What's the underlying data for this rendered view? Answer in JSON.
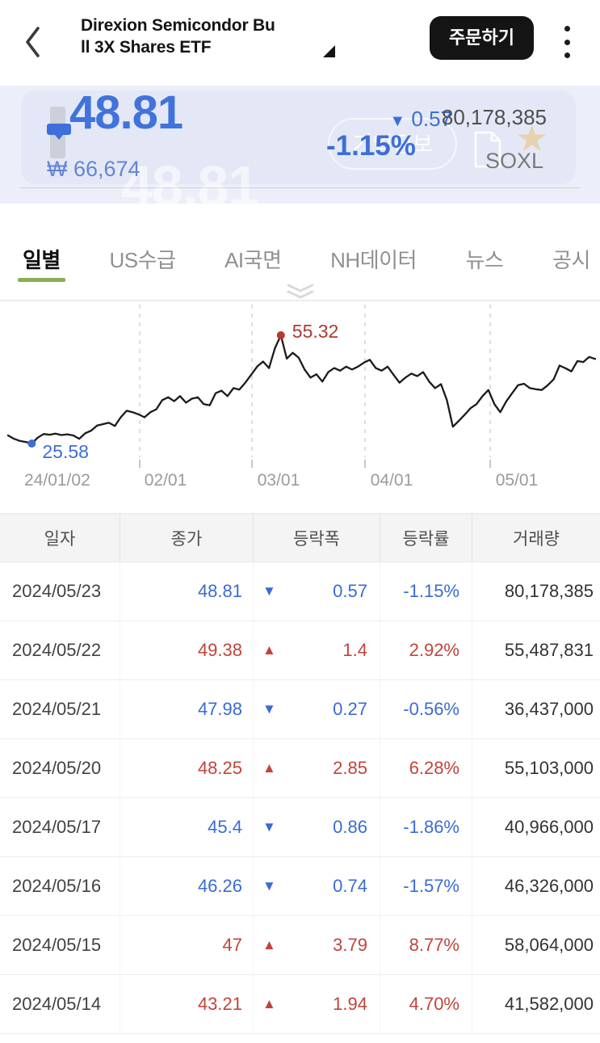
{
  "colors": {
    "up": "#C2443A",
    "down": "#3A6BD4",
    "accent_green": "#8CAE52",
    "price_blue": "#4273DC"
  },
  "header": {
    "title_line1": "Direxion Semicondor Bu",
    "title_line2": "ll 3X Shares ETF",
    "order_button": "주문하기"
  },
  "price": {
    "value": "48.81",
    "krw": "₩ 66,674",
    "change_direction": "▼",
    "change": "0.57",
    "change_pct": "-1.15%",
    "volume": "80,178,385",
    "ticker": "SOXL",
    "ghost_pill": "기업정보",
    "watermark": "48.81"
  },
  "tabs": [
    {
      "label": "일별",
      "active": true
    },
    {
      "label": "US수급",
      "active": false
    },
    {
      "label": "AI국면",
      "active": false
    },
    {
      "label": "NH데이터",
      "active": false
    },
    {
      "label": "뉴스",
      "active": false
    },
    {
      "label": "공시",
      "active": false
    }
  ],
  "chart_data": {
    "type": "line",
    "series_name": "SOXL daily close",
    "x_tick_labels": [
      "24/01/02",
      "02/01",
      "03/01",
      "04/01",
      "05/01"
    ],
    "ymin": 25.58,
    "ymax": 55.32,
    "min_label": "25.58",
    "max_label": "55.32",
    "grid": "vertical-dashed",
    "values": [
      27.8,
      26.9,
      26.3,
      26.0,
      25.58,
      27.2,
      28.2,
      28.0,
      28.3,
      27.9,
      28.1,
      27.8,
      26.9,
      28.4,
      29.1,
      30.5,
      30.9,
      31.3,
      30.4,
      32.8,
      34.6,
      34.2,
      33.6,
      32.8,
      34.2,
      35.0,
      37.5,
      38.3,
      37.2,
      38.6,
      36.8,
      37.9,
      38.3,
      36.4,
      36.1,
      39.4,
      40.1,
      38.6,
      40.8,
      40.4,
      42.3,
      44.5,
      46.7,
      48.1,
      46.3,
      51.8,
      55.32,
      48.9,
      50.5,
      49.2,
      45.9,
      43.7,
      44.6,
      42.6,
      45.2,
      46.3,
      45.6,
      46.7,
      45.9,
      46.7,
      47.8,
      48.6,
      46.3,
      45.6,
      46.7,
      44.5,
      42.3,
      43.7,
      44.8,
      44.1,
      45.2,
      42.6,
      40.8,
      41.9,
      37.5,
      30.2,
      31.8,
      33.5,
      35.3,
      36.4,
      38.6,
      40.3,
      36.4,
      34.2,
      37.1,
      39.4,
      41.6,
      42.0,
      40.8,
      40.5,
      40.3,
      41.6,
      43.21,
      47.0,
      46.26,
      45.4,
      48.25,
      47.98,
      49.38,
      48.81
    ]
  },
  "table": {
    "headers": [
      "일자",
      "종가",
      "등락폭",
      "등락률",
      "거래량"
    ],
    "rows": [
      {
        "date": "2024/05/23",
        "close": "48.81",
        "dir": "down",
        "change": "0.57",
        "pct": "-1.15%",
        "volume": "80,178,385"
      },
      {
        "date": "2024/05/22",
        "close": "49.38",
        "dir": "up",
        "change": "1.4",
        "pct": "2.92%",
        "volume": "55,487,831"
      },
      {
        "date": "2024/05/21",
        "close": "47.98",
        "dir": "down",
        "change": "0.27",
        "pct": "-0.56%",
        "volume": "36,437,000"
      },
      {
        "date": "2024/05/20",
        "close": "48.25",
        "dir": "up",
        "change": "2.85",
        "pct": "6.28%",
        "volume": "55,103,000"
      },
      {
        "date": "2024/05/17",
        "close": "45.4",
        "dir": "down",
        "change": "0.86",
        "pct": "-1.86%",
        "volume": "40,966,000"
      },
      {
        "date": "2024/05/16",
        "close": "46.26",
        "dir": "down",
        "change": "0.74",
        "pct": "-1.57%",
        "volume": "46,326,000"
      },
      {
        "date": "2024/05/15",
        "close": "47",
        "dir": "up",
        "change": "3.79",
        "pct": "8.77%",
        "volume": "58,064,000"
      },
      {
        "date": "2024/05/14",
        "close": "43.21",
        "dir": "up",
        "change": "1.94",
        "pct": "4.70%",
        "volume": "41,582,000"
      }
    ]
  }
}
